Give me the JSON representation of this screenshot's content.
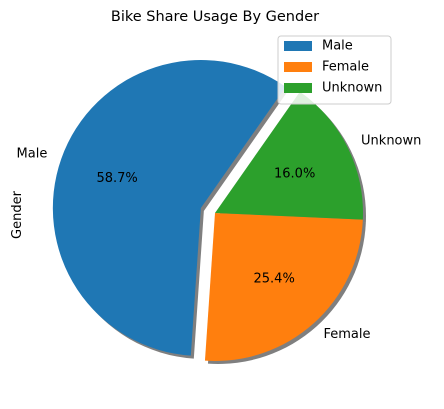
{
  "chart_data": {
    "type": "pie",
    "title": "Bike Share Usage By Gender",
    "ylabel": "Gender",
    "categories": [
      "Male",
      "Female",
      "Unknown"
    ],
    "values": [
      58.7,
      25.4,
      16.0
    ],
    "pct_labels": [
      "58.7%",
      "25.4%",
      "16.0%"
    ],
    "colors": [
      "#1f77b4",
      "#ff7f0e",
      "#2ca02c"
    ],
    "exploded": "Male",
    "shadow": true,
    "legend": {
      "placement": "upper-right",
      "entries": [
        "Male",
        "Female",
        "Unknown"
      ]
    }
  }
}
